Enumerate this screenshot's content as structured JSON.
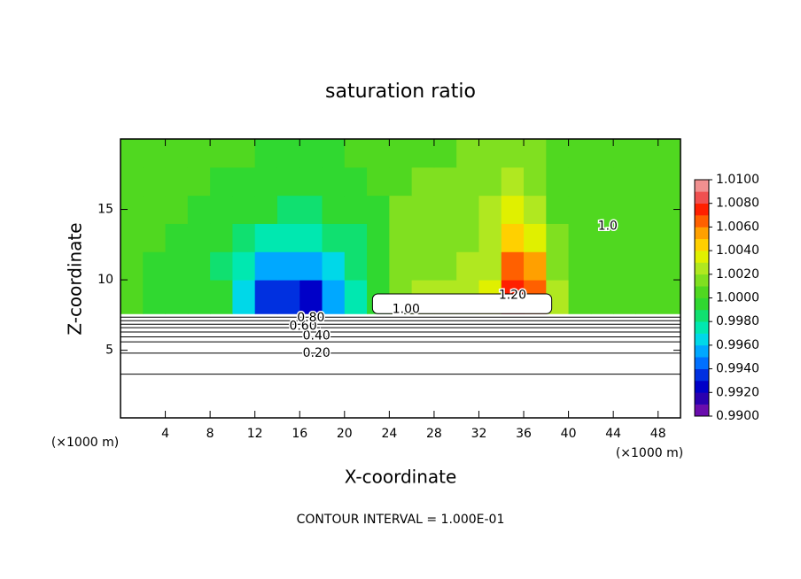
{
  "chart_data": {
    "type": "contour",
    "title": "saturation ratio",
    "x_label": "X-coordinate",
    "y_label": "Z-coordinate",
    "x_unit": "(×1000 m)",
    "y_unit": "(×1000 m)",
    "footer": "CONTOUR INTERVAL = 1.000E-01",
    "xlim": [
      0,
      50
    ],
    "ylim": [
      0.2,
      20
    ],
    "xticks": [
      4,
      8,
      12,
      16,
      20,
      24,
      28,
      32,
      36,
      40,
      44,
      48
    ],
    "yticks": [
      5,
      10,
      15
    ],
    "field": {
      "x_edges": [
        0,
        2,
        4,
        6,
        8,
        10,
        12,
        14,
        16,
        18,
        20,
        22,
        24,
        26,
        28,
        30,
        32,
        34,
        36,
        38,
        40,
        42,
        44,
        46,
        48,
        50
      ],
      "z_edges": [
        7.6,
        10,
        12,
        14,
        16,
        18,
        20
      ],
      "values": [
        [
          1.0004,
          0.9996,
          0.9994,
          0.9992,
          0.999,
          0.9965,
          0.993,
          0.9935,
          0.9925,
          0.995,
          0.997,
          0.999,
          1.0015,
          1.002,
          1.002,
          1.0022,
          1.003,
          1.007,
          1.006,
          1.002,
          1.0005,
          1.0005,
          1.0003,
          1.0005,
          1.0008
        ],
        [
          1.0004,
          0.9998,
          0.9997,
          0.9994,
          0.9985,
          0.997,
          0.9955,
          0.995,
          0.9958,
          0.9965,
          0.998,
          0.9995,
          1.0015,
          1.0018,
          1.0018,
          1.002,
          1.0028,
          1.0065,
          1.005,
          1.0015,
          1.0004,
          1.0003,
          1.0003,
          1.0004,
          1.0005
        ],
        [
          1.0004,
          1.0,
          0.9998,
          0.9996,
          0.999,
          0.998,
          0.9975,
          0.997,
          0.9975,
          0.998,
          0.9988,
          0.9998,
          1.0012,
          1.0015,
          1.0016,
          1.0018,
          1.0025,
          1.004,
          1.0035,
          1.001,
          1.0003,
          1.0002,
          1.0002,
          1.0003,
          1.0004
        ],
        [
          1.0003,
          1.0002,
          1.0,
          0.9999,
          0.9996,
          0.9992,
          0.999,
          0.9988,
          0.9988,
          0.999,
          0.9993,
          0.9999,
          1.001,
          1.0012,
          1.0013,
          1.0015,
          1.002,
          1.003,
          1.0025,
          1.0008,
          1.0003,
          1.0002,
          1.0002,
          1.0002,
          1.0003
        ],
        [
          1.0003,
          1.0003,
          1.0002,
          1.0,
          0.9999,
          0.9997,
          0.9996,
          0.9995,
          0.9995,
          0.9996,
          0.9997,
          1.0,
          1.0008,
          1.001,
          1.0011,
          1.0012,
          1.0016,
          1.002,
          1.0016,
          1.0006,
          1.0003,
          1.0002,
          1.0002,
          1.0002,
          1.0003
        ],
        [
          1.0003,
          1.0003,
          1.0003,
          1.0002,
          1.0001,
          1.0,
          0.9999,
          0.9999,
          0.9999,
          0.9999,
          1.0,
          1.0001,
          1.0007,
          1.0008,
          1.0009,
          1.001,
          1.0012,
          1.0014,
          1.0012,
          1.0005,
          1.0003,
          1.0003,
          1.0003,
          1.0003,
          1.0003
        ]
      ]
    },
    "cloud": {
      "x": [
        22.5,
        38.5
      ],
      "z": [
        7.6,
        9.0
      ]
    },
    "contours": {
      "levels": [
        0.1,
        0.2,
        0.3,
        0.4,
        0.5,
        0.6,
        0.7,
        0.8,
        0.9
      ],
      "z": [
        3.3,
        4.8,
        5.6,
        5.95,
        6.3,
        6.6,
        6.85,
        7.1,
        7.35
      ]
    },
    "contour_labels": [
      {
        "text": "0.20",
        "x": 17.5,
        "z": 4.8
      },
      {
        "text": "0.40",
        "x": 17.5,
        "z": 6.0
      },
      {
        "text": "0.60",
        "x": 16.3,
        "z": 6.7
      },
      {
        "text": "0.80",
        "x": 17.0,
        "z": 7.3
      },
      {
        "text": "1.00",
        "x": 25.5,
        "z": 7.9
      },
      {
        "text": "1.20",
        "x": 35.0,
        "z": 8.9
      },
      {
        "text": "1.0",
        "x": 43.5,
        "z": 13.8
      }
    ],
    "colorbar": {
      "levels": [
        0.99,
        0.991,
        0.992,
        0.993,
        0.994,
        0.995,
        0.996,
        0.997,
        0.998,
        0.999,
        1.0,
        1.001,
        1.002,
        1.003,
        1.004,
        1.005,
        1.006,
        1.007,
        1.008,
        1.009,
        1.01
      ],
      "colors": [
        "#6a0dad",
        "#2a00b0",
        "#0000c8",
        "#0030e0",
        "#0070ff",
        "#00a8ff",
        "#00d8e8",
        "#00e8b0",
        "#10e070",
        "#30d830",
        "#50d820",
        "#80e020",
        "#b0e820",
        "#e0f000",
        "#ffd000",
        "#ffa000",
        "#ff6000",
        "#ff2000",
        "#f05050",
        "#f09090"
      ],
      "ticks": [
        {
          "value": 0.99,
          "label": "0.9900"
        },
        {
          "value": 0.992,
          "label": "0.9920"
        },
        {
          "value": 0.994,
          "label": "0.9940"
        },
        {
          "value": 0.996,
          "label": "0.9960"
        },
        {
          "value": 0.998,
          "label": "0.9980"
        },
        {
          "value": 1.0,
          "label": "1.0000"
        },
        {
          "value": 1.002,
          "label": "1.0020"
        },
        {
          "value": 1.004,
          "label": "1.0040"
        },
        {
          "value": 1.006,
          "label": "1.0060"
        },
        {
          "value": 1.008,
          "label": "1.0080"
        },
        {
          "value": 1.01,
          "label": "1.0100"
        }
      ]
    }
  }
}
